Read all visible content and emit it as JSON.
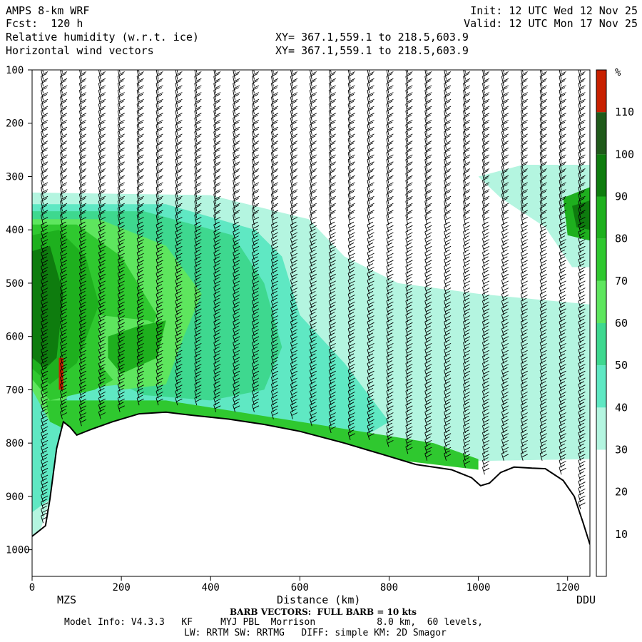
{
  "header": {
    "model": "AMPS 8-km WRF",
    "fcst": "Fcst:  120 h",
    "field1": "Relative humidity (w.r.t. ice)",
    "field2": "Horizontal wind vectors",
    "init": "Init: 12 UTC Wed 12 Nov 25",
    "valid": "Valid: 12 UTC Mon 17 Nov 25",
    "xy1": "XY= 367.1,559.1 to 218.5,603.9",
    "xy2": "XY= 367.1,559.1 to 218.5,603.9"
  },
  "footer": {
    "barb": "BARB VECTORS:  FULL BARB = 10 kts",
    "model_info": "Model Info: V4.3.3   KF     MYJ PBL  Morrison           8.0 km,  60 levels,",
    "physics": "LW: RRTM SW: RRTMG   DIFF: simple KM: 2D Smagor"
  },
  "colors": {
    "c0": "#ffffff",
    "c30": "#b4f5e0",
    "c40": "#5fe8c3",
    "c50": "#3ed88f",
    "c60": "#5ee65e",
    "c70": "#2fc82f",
    "c80": "#1eb01e",
    "c90": "#0e7c0e",
    "c100": "#1f5a1a",
    "c110": "#3b5a14",
    "c120": "#c82000",
    "terrain": "#000000"
  },
  "chart_data": {
    "type": "heatmap",
    "xlabel": "Distance (km)",
    "x_ticks": [
      "0",
      "200",
      "400",
      "600",
      "800",
      "1000",
      "1200"
    ],
    "xlim": [
      0,
      1250
    ],
    "y_ticks": [
      "100",
      "200",
      "300",
      "400",
      "500",
      "600",
      "700",
      "800",
      "900",
      "1000"
    ],
    "ylim": [
      100,
      1050
    ],
    "x_endpoints": {
      "left": "MZS",
      "right": "DDU"
    },
    "colorbar": {
      "unit": "%",
      "ticks": [
        "10",
        "20",
        "30",
        "40",
        "50",
        "60",
        "70",
        "80",
        "90",
        "100",
        "110"
      ],
      "bins": [
        0,
        10,
        20,
        30,
        40,
        50,
        60,
        70,
        80,
        90,
        100,
        110,
        120
      ]
    },
    "terrain_surface_hpa": [
      [
        0,
        975
      ],
      [
        15,
        965
      ],
      [
        30,
        955
      ],
      [
        40,
        905
      ],
      [
        55,
        810
      ],
      [
        70,
        760
      ],
      [
        85,
        770
      ],
      [
        100,
        785
      ],
      [
        130,
        775
      ],
      [
        180,
        760
      ],
      [
        240,
        745
      ],
      [
        300,
        742
      ],
      [
        360,
        748
      ],
      [
        440,
        755
      ],
      [
        520,
        765
      ],
      [
        600,
        778
      ],
      [
        700,
        800
      ],
      [
        780,
        820
      ],
      [
        860,
        840
      ],
      [
        940,
        850
      ],
      [
        985,
        865
      ],
      [
        1005,
        880
      ],
      [
        1025,
        875
      ],
      [
        1050,
        855
      ],
      [
        1080,
        845
      ],
      [
        1120,
        847
      ],
      [
        1150,
        848
      ],
      [
        1190,
        870
      ],
      [
        1215,
        900
      ],
      [
        1235,
        950
      ],
      [
        1250,
        990
      ]
    ],
    "rh_regions": [
      {
        "rh": 35,
        "poly": [
          [
            0,
            330
          ],
          [
            400,
            335
          ],
          [
            620,
            380
          ],
          [
            700,
            450
          ],
          [
            820,
            500
          ],
          [
            1000,
            520
          ],
          [
            1250,
            540
          ],
          [
            1250,
            830
          ],
          [
            900,
            835
          ],
          [
            600,
            790
          ],
          [
            300,
            745
          ],
          [
            100,
            790
          ],
          [
            70,
            760
          ],
          [
            40,
            905
          ],
          [
            20,
            960
          ],
          [
            0,
            975
          ]
        ]
      },
      {
        "rh": 35,
        "poly": [
          [
            1000,
            300
          ],
          [
            1100,
            278
          ],
          [
            1250,
            278
          ],
          [
            1250,
            470
          ],
          [
            1210,
            470
          ],
          [
            1150,
            395
          ],
          [
            1050,
            340
          ]
        ]
      },
      {
        "rh": 45,
        "poly": [
          [
            0,
            352
          ],
          [
            300,
            352
          ],
          [
            500,
            400
          ],
          [
            560,
            450
          ],
          [
            600,
            560
          ],
          [
            700,
            650
          ],
          [
            800,
            760
          ],
          [
            700,
            810
          ],
          [
            500,
            775
          ],
          [
            300,
            745
          ],
          [
            100,
            790
          ],
          [
            70,
            760
          ],
          [
            40,
            905
          ],
          [
            0,
            930
          ]
        ]
      },
      {
        "rh": 55,
        "poly": [
          [
            0,
            365
          ],
          [
            250,
            365
          ],
          [
            450,
            410
          ],
          [
            520,
            500
          ],
          [
            560,
            620
          ],
          [
            520,
            700
          ],
          [
            400,
            720
          ],
          [
            250,
            710
          ],
          [
            100,
            650
          ],
          [
            40,
            700
          ],
          [
            0,
            700
          ]
        ]
      },
      {
        "rh": 65,
        "poly": [
          [
            0,
            380
          ],
          [
            150,
            380
          ],
          [
            300,
            430
          ],
          [
            380,
            520
          ],
          [
            320,
            640
          ],
          [
            200,
            690
          ],
          [
            90,
            700
          ],
          [
            40,
            760
          ],
          [
            0,
            700
          ]
        ]
      },
      {
        "rh": 75,
        "poly": [
          [
            0,
            390
          ],
          [
            100,
            390
          ],
          [
            200,
            450
          ],
          [
            280,
            560
          ],
          [
            230,
            660
          ],
          [
            140,
            700
          ],
          [
            40,
            720
          ],
          [
            0,
            680
          ]
        ]
      },
      {
        "rh": 85,
        "poly": [
          [
            0,
            410
          ],
          [
            60,
            400
          ],
          [
            120,
            450
          ],
          [
            150,
            540
          ],
          [
            100,
            650
          ],
          [
            40,
            690
          ],
          [
            0,
            660
          ]
        ]
      },
      {
        "rh": 95,
        "poly": [
          [
            0,
            440
          ],
          [
            40,
            430
          ],
          [
            70,
            520
          ],
          [
            55,
            640
          ],
          [
            30,
            660
          ],
          [
            0,
            640
          ]
        ]
      },
      {
        "rh": 65,
        "poly": [
          [
            150,
            560
          ],
          [
            260,
            570
          ],
          [
            340,
            600
          ],
          [
            300,
            690
          ],
          [
            200,
            700
          ],
          [
            150,
            650
          ]
        ]
      },
      {
        "rh": 85,
        "poly": [
          [
            170,
            600
          ],
          [
            240,
            580
          ],
          [
            300,
            570
          ],
          [
            280,
            640
          ],
          [
            200,
            670
          ],
          [
            170,
            640
          ]
        ]
      },
      {
        "rh": 75,
        "poly": [
          [
            30,
            720
          ],
          [
            300,
            720
          ],
          [
            600,
            760
          ],
          [
            900,
            800
          ],
          [
            1000,
            830
          ],
          [
            1000,
            850
          ],
          [
            800,
            830
          ],
          [
            500,
            780
          ],
          [
            300,
            745
          ],
          [
            100,
            785
          ],
          [
            40,
            760
          ]
        ]
      },
      {
        "rh": 85,
        "poly": [
          [
            1190,
            340
          ],
          [
            1250,
            320
          ],
          [
            1250,
            420
          ],
          [
            1200,
            410
          ]
        ]
      },
      {
        "rh": 95,
        "poly": [
          [
            1210,
            355
          ],
          [
            1250,
            345
          ],
          [
            1250,
            400
          ],
          [
            1220,
            395
          ]
        ]
      },
      {
        "rh": 115,
        "poly": [
          [
            60,
            640
          ],
          [
            70,
            640
          ],
          [
            70,
            700
          ],
          [
            60,
            700
          ]
        ]
      }
    ]
  }
}
